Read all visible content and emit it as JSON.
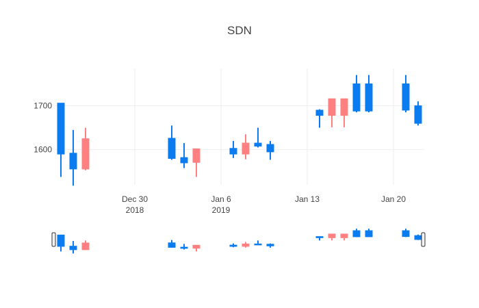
{
  "chart_data": {
    "type": "candlestick",
    "title": "SDN",
    "xlabel": "",
    "ylabel": "",
    "x_range": [
      "2018-12-24",
      "2019-01-22"
    ],
    "ylim": [
      1520,
      1785
    ],
    "y_ticks": [
      1600,
      1700
    ],
    "x_ticks": [
      {
        "date": "2018-12-30",
        "label": "Dec 30",
        "sublabel": "2018"
      },
      {
        "date": "2019-01-06",
        "label": "Jan 6",
        "sublabel": "2019"
      },
      {
        "date": "2019-01-13",
        "label": "Jan 13",
        "sublabel": ""
      },
      {
        "date": "2019-01-20",
        "label": "Jan 20",
        "sublabel": ""
      }
    ],
    "colors": {
      "increasing": "#1f77b4",
      "increasing_fill": "#0a7cf0",
      "decreasing": "#ff8080"
    },
    "rangeslider": true,
    "data": [
      {
        "date": "2018-12-24",
        "open": 1590,
        "high": 1706,
        "low": 1538,
        "close": 1706
      },
      {
        "date": "2018-12-25",
        "open": 1556,
        "high": 1645,
        "low": 1518,
        "close": 1592
      },
      {
        "date": "2018-12-26",
        "open": 1625,
        "high": 1650,
        "low": 1553,
        "close": 1556
      },
      {
        "date": "2019-01-02",
        "open": 1580,
        "high": 1655,
        "low": 1577,
        "close": 1626
      },
      {
        "date": "2019-01-03",
        "open": 1570,
        "high": 1615,
        "low": 1558,
        "close": 1582
      },
      {
        "date": "2019-01-04",
        "open": 1602,
        "high": 1602,
        "low": 1538,
        "close": 1571
      },
      {
        "date": "2019-01-07",
        "open": 1590,
        "high": 1620,
        "low": 1581,
        "close": 1603
      },
      {
        "date": "2019-01-08",
        "open": 1615,
        "high": 1635,
        "low": 1578,
        "close": 1590
      },
      {
        "date": "2019-01-09",
        "open": 1608,
        "high": 1650,
        "low": 1605,
        "close": 1615
      },
      {
        "date": "2019-01-10",
        "open": 1595,
        "high": 1620,
        "low": 1577,
        "close": 1612
      },
      {
        "date": "2019-01-14",
        "open": 1678,
        "high": 1692,
        "low": 1650,
        "close": 1690
      },
      {
        "date": "2019-01-15",
        "open": 1716,
        "high": 1716,
        "low": 1651,
        "close": 1678
      },
      {
        "date": "2019-01-16",
        "open": 1716,
        "high": 1716,
        "low": 1651,
        "close": 1678
      },
      {
        "date": "2019-01-17",
        "open": 1688,
        "high": 1770,
        "low": 1685,
        "close": 1750
      },
      {
        "date": "2019-01-18",
        "open": 1688,
        "high": 1770,
        "low": 1685,
        "close": 1750
      },
      {
        "date": "2019-01-21",
        "open": 1690,
        "high": 1770,
        "low": 1685,
        "close": 1750
      },
      {
        "date": "2019-01-22",
        "open": 1660,
        "high": 1710,
        "low": 1655,
        "close": 1700
      }
    ]
  }
}
